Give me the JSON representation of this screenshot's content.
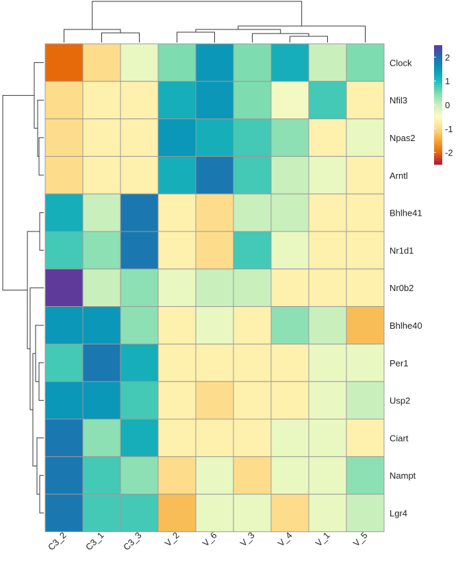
{
  "chart_data": {
    "type": "heatmap",
    "title": "",
    "xlabel": "",
    "ylabel": "",
    "columns": [
      "C3_2",
      "C3_1",
      "C3_3",
      "V_2",
      "V_6",
      "V_3",
      "V_4",
      "V_1",
      "V_5"
    ],
    "rows": [
      "Clock",
      "Nfil3",
      "Npas2",
      "Arntl",
      "Bhlhe41",
      "Nr1d1",
      "Nr0b2",
      "Bhlhe40",
      "Per1",
      "Usp2",
      "Ciart",
      "Nampt",
      "Lgr4"
    ],
    "values": [
      [
        -2.0,
        -1.0,
        -0.3,
        0.5,
        1.5,
        0.5,
        1.2,
        0.0,
        0.5
      ],
      [
        -1.0,
        -0.7,
        -0.7,
        1.2,
        1.5,
        0.5,
        -0.4,
        0.8,
        -0.7
      ],
      [
        -1.0,
        -0.7,
        -0.7,
        1.5,
        1.2,
        0.8,
        0.4,
        -0.7,
        -0.3
      ],
      [
        -1.0,
        -0.7,
        -0.7,
        1.2,
        1.9,
        0.8,
        0.0,
        -0.3,
        -0.7
      ],
      [
        1.2,
        0.0,
        1.9,
        -0.7,
        -1.0,
        0.0,
        0.0,
        -0.7,
        -0.7
      ],
      [
        0.8,
        0.4,
        1.9,
        -0.7,
        -1.0,
        0.8,
        -0.3,
        -0.7,
        -0.7
      ],
      [
        2.5,
        0.0,
        0.4,
        -0.3,
        0.0,
        0.0,
        -0.7,
        -0.7,
        -0.7
      ],
      [
        1.5,
        1.5,
        0.4,
        -0.7,
        -0.3,
        -0.7,
        0.4,
        0.0,
        -1.3
      ],
      [
        0.8,
        1.9,
        1.2,
        -0.7,
        -0.7,
        -0.7,
        -0.7,
        -0.3,
        -0.3
      ],
      [
        1.5,
        1.5,
        0.8,
        -0.7,
        -1.0,
        -0.7,
        -0.7,
        -0.3,
        0.0
      ],
      [
        1.9,
        0.4,
        1.2,
        -0.7,
        -0.7,
        -0.7,
        -0.3,
        -0.3,
        -0.7
      ],
      [
        1.9,
        0.8,
        0.4,
        -1.0,
        -0.3,
        -1.0,
        -0.3,
        -0.3,
        0.4
      ],
      [
        1.9,
        0.8,
        0.8,
        -1.3,
        -0.3,
        -0.3,
        -1.0,
        -0.3,
        0.0
      ]
    ],
    "legend": {
      "placement": "top-right",
      "ticks": [
        "2",
        "1",
        "0",
        "-1",
        "-2"
      ],
      "tick_values": [
        2,
        1,
        0,
        -1,
        -2
      ],
      "range": [
        -2.5,
        2.5
      ]
    },
    "colors": {
      "scale": [
        "#b2153f",
        "#e66a0a",
        "#f5a835",
        "#fddd8b",
        "#fefcc4",
        "#c9efbd",
        "#7ddcb0",
        "#1cbdb9",
        "#0a97b8",
        "#1f6fae",
        "#5e3a9a"
      ],
      "cell_border": "#9a9a9a",
      "dendrogram": "#333333"
    },
    "dendrogram": {
      "rows": true,
      "columns": true
    }
  }
}
